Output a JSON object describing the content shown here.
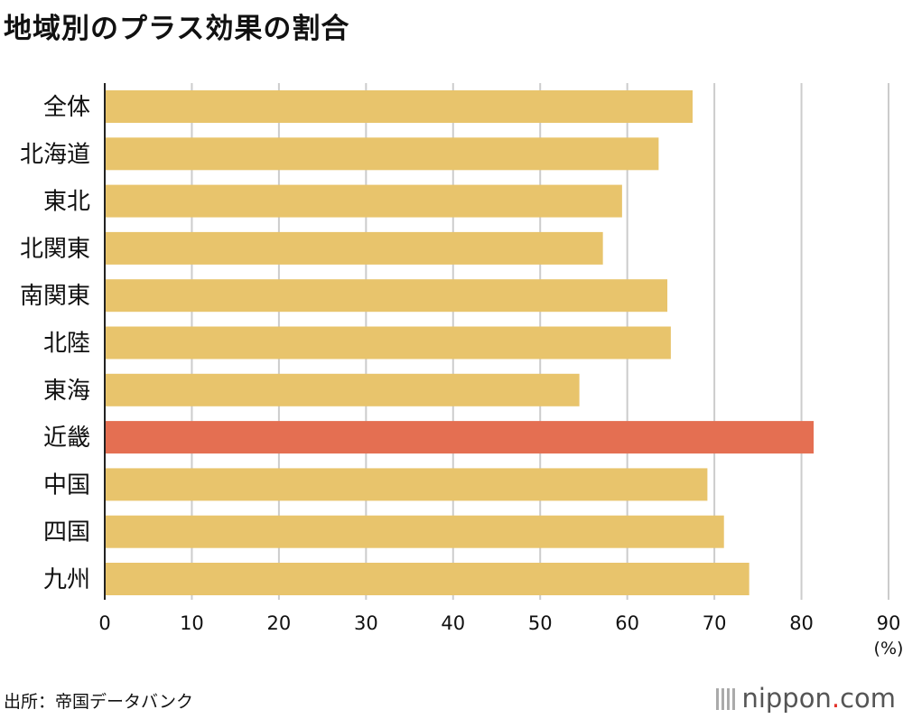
{
  "chart_data": {
    "type": "bar",
    "orientation": "horizontal",
    "title": "地域別のプラス効果の割合",
    "categories": [
      "全体",
      "北海道",
      "東北",
      "北関東",
      "南関東",
      "北陸",
      "東海",
      "近畿",
      "中国",
      "四国",
      "九州"
    ],
    "values": [
      67.5,
      63.6,
      59.4,
      57.2,
      64.6,
      65.0,
      54.5,
      81.4,
      69.2,
      71.1,
      74.0
    ],
    "highlight": "近畿",
    "xlabel": "(%)",
    "xlim": [
      0,
      90
    ],
    "xticks": [
      "0",
      "10",
      "20",
      "30",
      "40",
      "50",
      "60",
      "70",
      "80",
      "90"
    ],
    "grid": true,
    "colors": {
      "bar": "#e8c46c",
      "highlight": "#e46f52",
      "grid": "#cccccc",
      "axis": "#222222"
    }
  },
  "source": "出所：帝国データバンク",
  "logo": {
    "text": "nippon",
    "dot": ".",
    "suffix": "com"
  }
}
